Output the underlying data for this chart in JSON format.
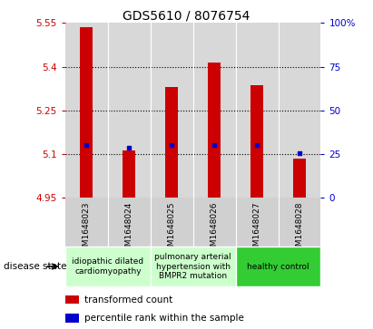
{
  "title": "GDS5610 / 8076754",
  "samples": [
    "GSM1648023",
    "GSM1648024",
    "GSM1648025",
    "GSM1648026",
    "GSM1648027",
    "GSM1648028"
  ],
  "transformed_counts": [
    5.535,
    5.113,
    5.33,
    5.415,
    5.335,
    5.085
  ],
  "percentile_ranks": [
    5.13,
    5.12,
    5.13,
    5.13,
    5.13,
    5.101
  ],
  "bar_bottom": 4.95,
  "ylim_left": [
    4.95,
    5.55
  ],
  "ylim_right": [
    0,
    100
  ],
  "yticks_left": [
    4.95,
    5.1,
    5.25,
    5.4,
    5.55
  ],
  "yticks_right": [
    0,
    25,
    50,
    75,
    100
  ],
  "ytick_labels_left": [
    "4.95",
    "5.1",
    "5.25",
    "5.4",
    "5.55"
  ],
  "ytick_labels_right": [
    "0",
    "25",
    "50",
    "75",
    "100%"
  ],
  "bar_color": "#cc0000",
  "dot_color": "#0000cc",
  "left_tick_color": "#cc0000",
  "right_tick_color": "#0000cc",
  "grid_lines": [
    5.1,
    5.25,
    5.4
  ],
  "disease_groups": [
    {
      "label": "idiopathic dilated\ncardiomyopathy",
      "start": 0,
      "end": 1,
      "color": "#ccffcc"
    },
    {
      "label": "pulmonary arterial\nhypertension with\nBMPR2 mutation",
      "start": 2,
      "end": 3,
      "color": "#ccffcc"
    },
    {
      "label": "healthy control",
      "start": 4,
      "end": 5,
      "color": "#33cc33"
    }
  ],
  "disease_state_label": "disease state",
  "legend_bar_label": "transformed count",
  "legend_dot_label": "percentile rank within the sample",
  "bg_color": "#ffffff",
  "plot_bg_color": "#d8d8d8",
  "sample_bg_color": "#d0d0d0",
  "bar_width": 0.3,
  "title_fontsize": 10,
  "tick_fontsize": 7.5,
  "sample_fontsize": 6.5,
  "group_fontsize": 6.5,
  "legend_fontsize": 7.5
}
